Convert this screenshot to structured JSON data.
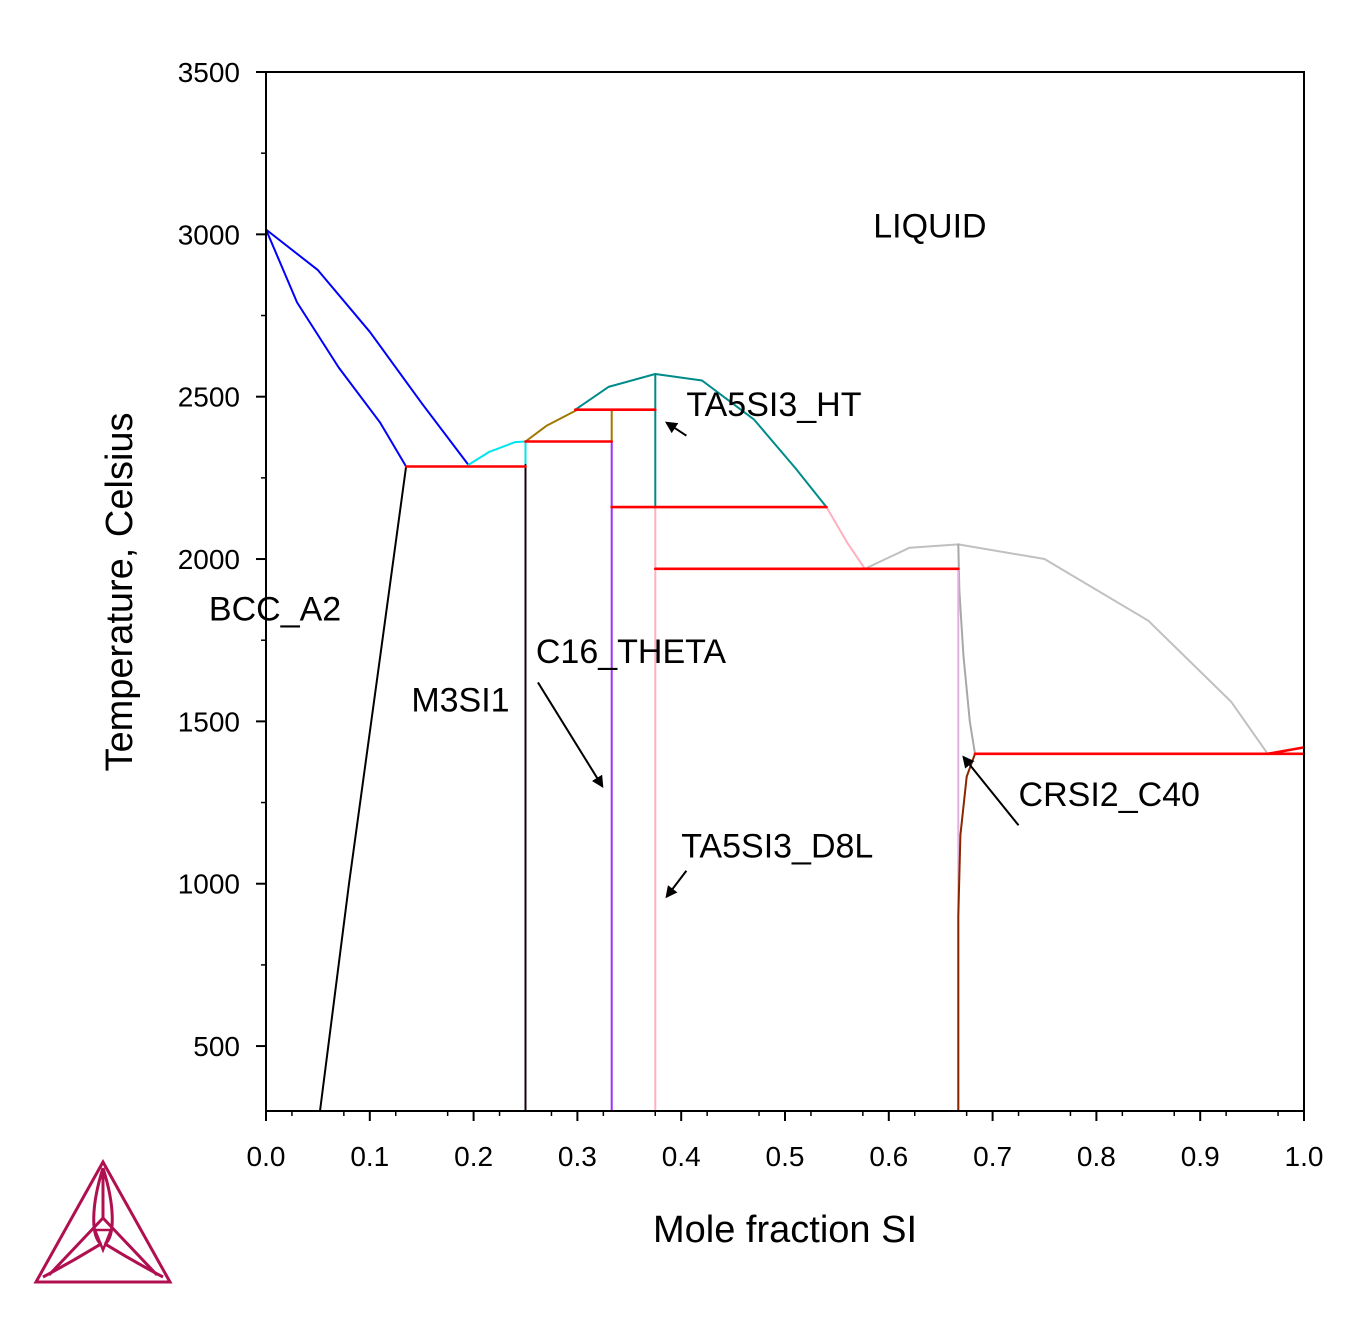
{
  "chart_data": {
    "type": "line",
    "xlabel": "Mole fraction SI",
    "ylabel": "Temperature, Celsius",
    "xlim": [
      0,
      1
    ],
    "ylim": [
      300,
      3500
    ],
    "xticks": [
      "0.0",
      "0.1",
      "0.2",
      "0.3",
      "0.4",
      "0.5",
      "0.6",
      "0.7",
      "0.8",
      "0.9",
      "1.0"
    ],
    "yticks": [
      "500",
      "1000",
      "1500",
      "2000",
      "2500",
      "3000",
      "3500"
    ],
    "grid": false,
    "legend": "none",
    "series": [
      {
        "color": "#0000ff",
        "points": [
          [
            0,
            3015
          ],
          [
            0.05,
            2890
          ],
          [
            0.1,
            2700
          ],
          [
            0.15,
            2480
          ],
          [
            0.195,
            2290
          ]
        ]
      },
      {
        "color": "#0000ff",
        "points": [
          [
            0,
            3015
          ],
          [
            0.03,
            2790
          ],
          [
            0.07,
            2590
          ],
          [
            0.11,
            2420
          ],
          [
            0.135,
            2285
          ]
        ]
      },
      {
        "color": "#00e5ee",
        "points": [
          [
            0.195,
            2290
          ],
          [
            0.215,
            2330
          ],
          [
            0.24,
            2360
          ],
          [
            0.25,
            2362
          ]
        ]
      },
      {
        "color": "#00e5ee",
        "points": [
          [
            0.25,
            2290
          ],
          [
            0.25,
            2362
          ]
        ]
      },
      {
        "color": "#a07800",
        "points": [
          [
            0.25,
            2362
          ],
          [
            0.27,
            2410
          ],
          [
            0.3,
            2460
          ],
          [
            0.325,
            2460
          ]
        ]
      },
      {
        "color": "#a07800",
        "points": [
          [
            0.333,
            2360
          ],
          [
            0.333,
            2460
          ]
        ]
      },
      {
        "color": "#008b8b",
        "points": [
          [
            0.298,
            2460
          ],
          [
            0.33,
            2530
          ],
          [
            0.375,
            2570
          ],
          [
            0.42,
            2550
          ],
          [
            0.47,
            2430
          ],
          [
            0.51,
            2280
          ],
          [
            0.54,
            2160
          ]
        ]
      },
      {
        "color": "#008b8b",
        "points": [
          [
            0.375,
            2160
          ],
          [
            0.375,
            2570
          ]
        ]
      },
      {
        "color": "#ffb0c0",
        "points": [
          [
            0.54,
            2160
          ],
          [
            0.56,
            2050
          ],
          [
            0.577,
            1970
          ]
        ]
      },
      {
        "color": "#ffb0c0",
        "points": [
          [
            0.375,
            300
          ],
          [
            0.375,
            2160
          ]
        ]
      },
      {
        "color": "#c0c0c0",
        "points": [
          [
            0.577,
            1970
          ],
          [
            0.62,
            2035
          ],
          [
            0.667,
            2045
          ],
          [
            0.75,
            2000
          ],
          [
            0.85,
            1810
          ],
          [
            0.93,
            1560
          ],
          [
            0.965,
            1400
          ]
        ]
      },
      {
        "color": "#a8a8a8",
        "points": [
          [
            0.667,
            2045
          ],
          [
            0.668,
            1900
          ],
          [
            0.672,
            1700
          ],
          [
            0.678,
            1500
          ],
          [
            0.683,
            1400
          ]
        ]
      },
      {
        "color": "#e0b0e0",
        "points": [
          [
            0.667,
            300
          ],
          [
            0.667,
            1970
          ]
        ]
      },
      {
        "color": "#9b30ff",
        "points": [
          [
            0.333,
            300
          ],
          [
            0.333,
            2360
          ]
        ]
      },
      {
        "color": "#1a0010",
        "points": [
          [
            0.25,
            300
          ],
          [
            0.25,
            2290
          ]
        ]
      },
      {
        "color": "#000000",
        "points": [
          [
            0.052,
            300
          ],
          [
            0.08,
            1000
          ],
          [
            0.11,
            1700
          ],
          [
            0.135,
            2285
          ]
        ]
      },
      {
        "color": "#8b2500",
        "points": [
          [
            0.667,
            300
          ],
          [
            0.667,
            900
          ],
          [
            0.669,
            1150
          ],
          [
            0.675,
            1330
          ],
          [
            0.683,
            1400
          ]
        ]
      },
      {
        "color": "#ff0000",
        "points": [
          [
            0.135,
            2285
          ],
          [
            0.25,
            2285
          ]
        ]
      },
      {
        "color": "#ff0000",
        "points": [
          [
            0.25,
            2362
          ],
          [
            0.333,
            2362
          ]
        ]
      },
      {
        "color": "#ff0000",
        "points": [
          [
            0.298,
            2460
          ],
          [
            0.375,
            2460
          ]
        ]
      },
      {
        "color": "#ff0000",
        "points": [
          [
            0.333,
            2160
          ],
          [
            0.54,
            2160
          ]
        ]
      },
      {
        "color": "#ff0000",
        "points": [
          [
            0.375,
            1970
          ],
          [
            0.667,
            1970
          ]
        ]
      },
      {
        "color": "#ff0000",
        "points": [
          [
            0.683,
            1400
          ],
          [
            1.0,
            1400
          ]
        ]
      },
      {
        "color": "#ff0000",
        "points": [
          [
            0.965,
            1400
          ],
          [
            1.0,
            1420
          ]
        ]
      }
    ],
    "annotations": [
      {
        "text": "LIQUID",
        "x": 0.585,
        "y": 2990
      },
      {
        "text": "BCC_A2",
        "x": -0.055,
        "y": 1810
      },
      {
        "text": "M3SI1",
        "x": 0.14,
        "y": 1530
      },
      {
        "text": "C16_THETA",
        "x": 0.26,
        "y": 1680
      },
      {
        "text": "TA5SI3_HT",
        "x": 0.405,
        "y": 2440
      },
      {
        "text": "TA5SI3_D8L",
        "x": 0.4,
        "y": 1080
      },
      {
        "text": "CRSI2_C40",
        "x": 0.725,
        "y": 1240
      }
    ],
    "arrows": [
      {
        "from": [
          0.262,
          1620
        ],
        "to": [
          0.324,
          1300
        ]
      },
      {
        "from": [
          0.405,
          2380
        ],
        "to": [
          0.386,
          2420
        ]
      },
      {
        "from": [
          0.405,
          1040
        ],
        "to": [
          0.386,
          960
        ]
      },
      {
        "from": [
          0.725,
          1180
        ],
        "to": [
          0.672,
          1390
        ]
      }
    ]
  },
  "logo": {
    "color": "#b01050",
    "name": "thermo-calc-logo-icon"
  }
}
